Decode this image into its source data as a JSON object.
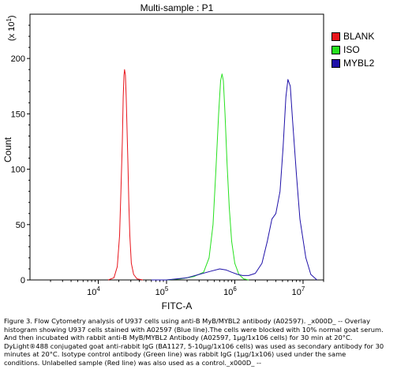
{
  "chart_data": {
    "type": "line",
    "title": "Multi-sample : P1",
    "xlabel": "FITC-A",
    "ylabel": "Count",
    "y_multiplier": "(x 10^1)",
    "x_scale": "log",
    "xlim": [
      1000,
      20000000
    ],
    "ylim": [
      0,
      240
    ],
    "x_ticks": [
      10000,
      100000,
      1000000,
      10000000
    ],
    "x_tick_labels": [
      {
        "base": "10",
        "exp": "4"
      },
      {
        "base": "10",
        "exp": "5"
      },
      {
        "base": "10",
        "exp": "6"
      },
      {
        "base": "10",
        "exp": "7"
      }
    ],
    "y_ticks": [
      0,
      50,
      100,
      150,
      200
    ],
    "y_tick_labels": [
      "0",
      "50",
      "100",
      "150",
      "200"
    ],
    "legend_position": "right",
    "series": [
      {
        "name": "BLANK",
        "color": "#e8141b",
        "x": [
          14000,
          17000,
          19000,
          20500,
          21500,
          22500,
          23200,
          23800,
          24300,
          25000,
          25700,
          26400,
          27200,
          28000,
          29000,
          30500,
          33000,
          37000,
          45000
        ],
        "y": [
          0,
          2,
          12,
          40,
          80,
          125,
          165,
          185,
          190,
          185,
          165,
          135,
          105,
          70,
          40,
          15,
          5,
          1,
          0
        ]
      },
      {
        "name": "ISO",
        "color": "#26e01e",
        "x": [
          100000,
          160000,
          250000,
          350000,
          420000,
          480000,
          530000,
          580000,
          620000,
          650000,
          680000,
          720000,
          770000,
          830000,
          900000,
          1000000,
          1150000,
          1350000,
          1600000
        ],
        "y": [
          0,
          1,
          3,
          7,
          20,
          50,
          100,
          150,
          180,
          186,
          180,
          150,
          105,
          65,
          35,
          15,
          5,
          1,
          0
        ]
      },
      {
        "name": "MYBL2",
        "color": "#1e10a8",
        "x": [
          60000,
          100000,
          200000,
          300000,
          450000,
          600000,
          750000,
          900000,
          1100000,
          1300000,
          1600000,
          2000000,
          2500000,
          3000000,
          3500000,
          4000000,
          4600000,
          5100000,
          5600000,
          6000000,
          6500000,
          7000000,
          8000000,
          9000000,
          11000000,
          13000000,
          16000000
        ],
        "y": [
          0,
          0,
          2,
          5,
          8,
          10,
          9,
          7,
          5,
          4,
          4,
          6,
          15,
          35,
          55,
          60,
          80,
          120,
          165,
          181,
          175,
          145,
          95,
          55,
          20,
          5,
          0
        ]
      }
    ]
  },
  "caption": [
    "Figure 3. Flow Cytometry analysis of U937 cells using anti-B MyB/MYBL2 antibody (A02597).  _x000D_ -- Overlay",
    "histogram showing U937 cells stained with A02597 (Blue line).The cells were blocked with 10% normal goat serum.",
    "And then incubated with rabbit anti-B MyB/MYBL2 Antibody (A02597, 1μg/1x106 cells) for 30 min at 20°C.",
    "DyLight®488 conjugated goat anti-rabbit IgG (BA1127, 5-10μg/1x106 cells) was used as secondary antibody for 30",
    "minutes at 20°C. Isotype control antibody (Green line) was rabbit IgG (1μg/1x106) used under the same",
    "conditions. Unlabelled sample (Red line) was also used as a control._x000D_ --"
  ]
}
